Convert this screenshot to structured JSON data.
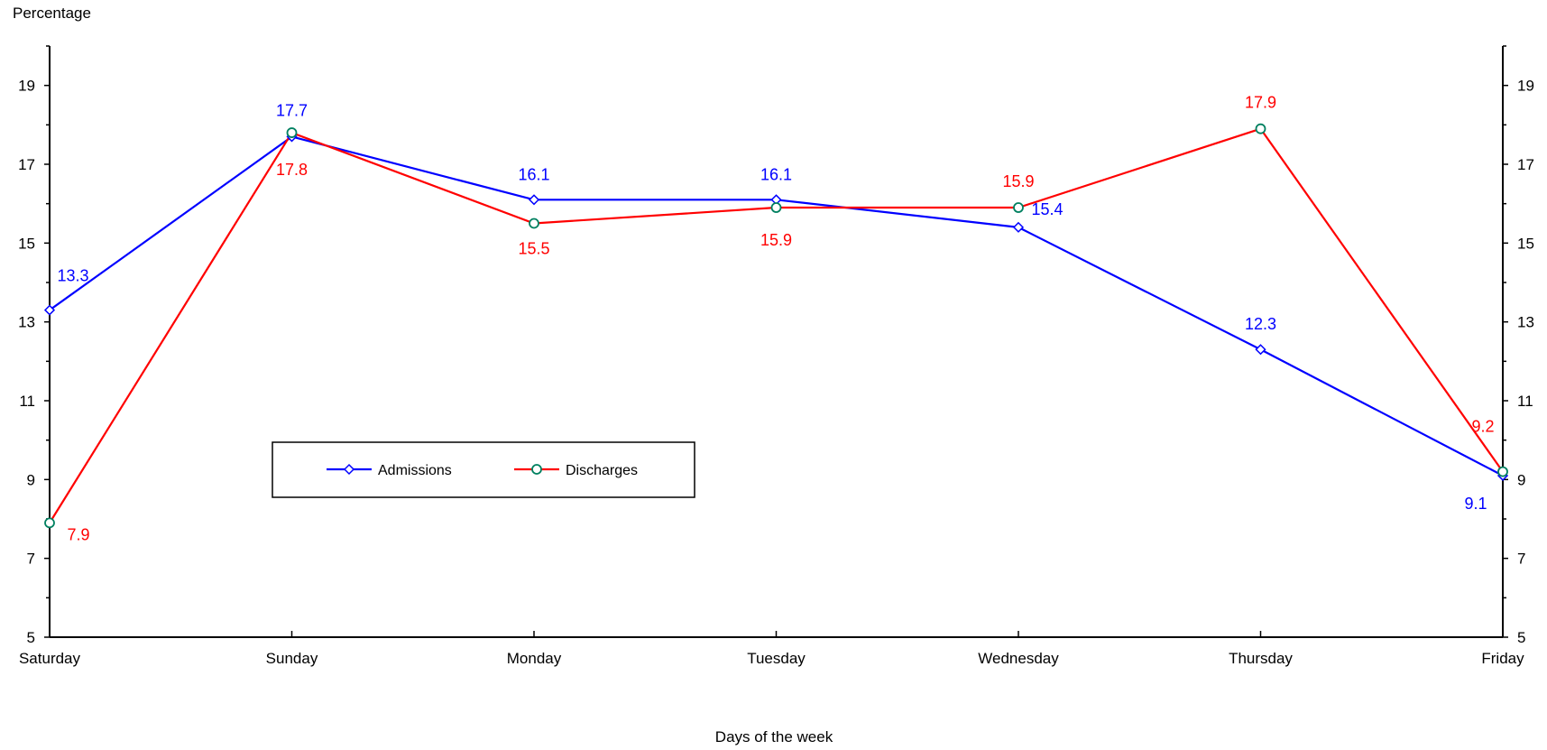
{
  "chart_data": {
    "type": "line",
    "categories": [
      "Saturday",
      "Sunday",
      "Monday",
      "Tuesday",
      "Wednesday",
      "Thursday",
      "Friday"
    ],
    "ylabel": "Percentage",
    "xlabel": "Days of the week",
    "ylim": [
      5,
      20
    ],
    "yticks": [
      5,
      7,
      9,
      11,
      13,
      15,
      17,
      19
    ],
    "y_axis_both_sides": true,
    "grid": false,
    "legend_placement": "center-left",
    "series": [
      {
        "name": "Admissions",
        "color": "#0000ff",
        "marker": "diamond",
        "values": [
          13.3,
          17.7,
          16.1,
          16.1,
          15.4,
          12.3,
          9.1
        ],
        "labels": [
          "13.3",
          "17.7",
          "16.1",
          "16.1",
          "15.4",
          "12.3",
          "9.1"
        ]
      },
      {
        "name": "Discharges",
        "color": "#ff0000",
        "marker": "circle",
        "marker_color": "#008060",
        "values": [
          7.9,
          17.8,
          15.5,
          15.9,
          15.9,
          17.9,
          9.2
        ],
        "labels": [
          "7.9",
          "17.8",
          "15.5",
          "15.9",
          "15.9",
          "17.9",
          "9.2"
        ]
      }
    ]
  }
}
